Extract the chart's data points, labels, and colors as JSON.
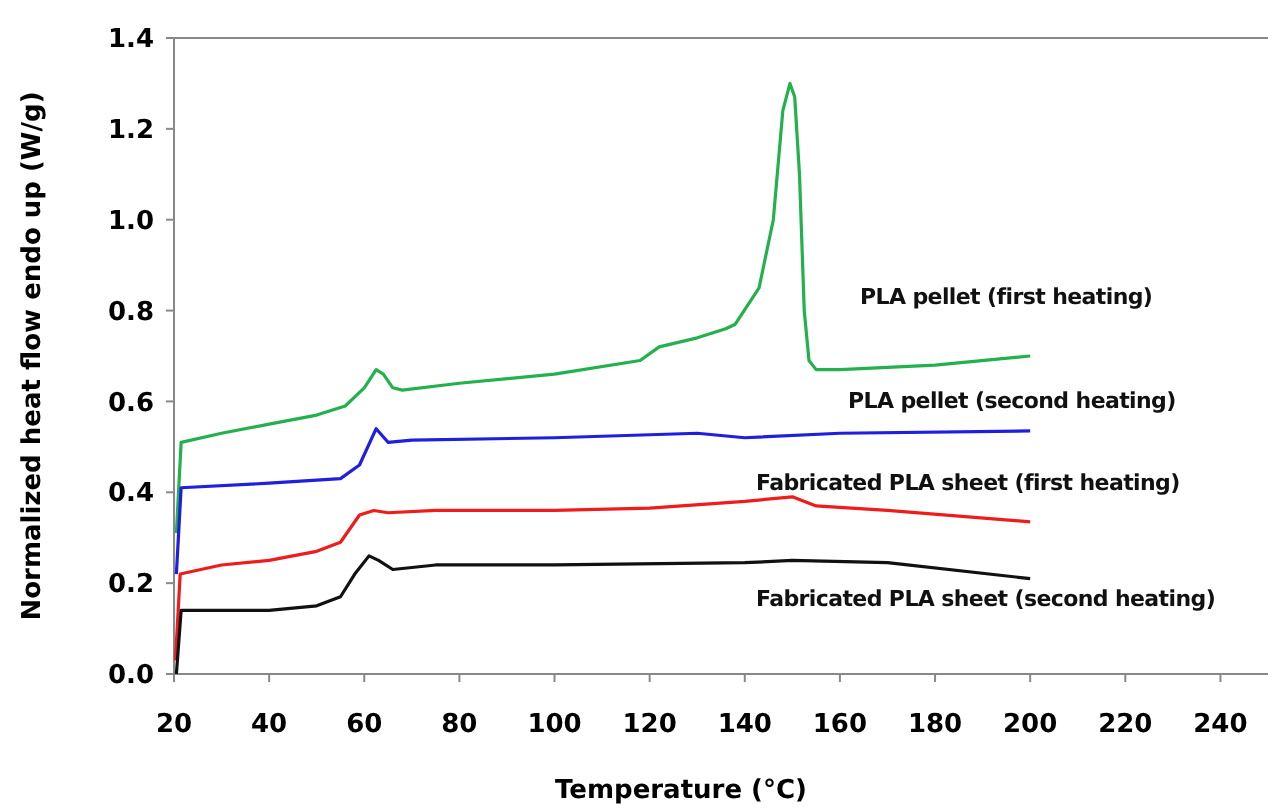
{
  "chart_data": {
    "type": "line",
    "xlabel": "Temperature (°C)",
    "ylabel": "Normalized heat flow endo up (W/g)",
    "xlim": [
      20,
      250
    ],
    "ylim": [
      0,
      1.4
    ],
    "xticks": [
      20,
      40,
      60,
      80,
      100,
      120,
      140,
      160,
      180,
      200,
      220,
      240
    ],
    "yticks": [
      {
        "value": 0,
        "label": "0.0"
      },
      {
        "value": 0.2,
        "label": "0.2"
      },
      {
        "value": 0.4,
        "label": "0.4"
      },
      {
        "value": 0.6,
        "label": "0.6"
      },
      {
        "value": 0.8,
        "label": "0.8"
      },
      {
        "value": 1.0,
        "label": "1.0"
      },
      {
        "value": 1.2,
        "label": "1.2"
      },
      {
        "value": 1.4,
        "label": "1.4"
      }
    ],
    "grid": false,
    "line_style": "solid",
    "series": [
      {
        "name": "PLA pellet (first heating)",
        "color": "#22b14c",
        "x": [
          20.5,
          21.5,
          30,
          40,
          50,
          56,
          60,
          62.5,
          64,
          66,
          68,
          80,
          100,
          118,
          122,
          130,
          136,
          138,
          143,
          146,
          148,
          149.5,
          150.5,
          151.5,
          152.5,
          153.5,
          155,
          160,
          180,
          200
        ],
        "values": [
          0.31,
          0.51,
          0.53,
          0.55,
          0.57,
          0.59,
          0.63,
          0.67,
          0.66,
          0.63,
          0.625,
          0.64,
          0.66,
          0.69,
          0.72,
          0.74,
          0.76,
          0.77,
          0.85,
          1.0,
          1.24,
          1.3,
          1.27,
          1.1,
          0.8,
          0.69,
          0.67,
          0.67,
          0.68,
          0.7
        ]
      },
      {
        "name": "PLA pellet (second heating)",
        "color": "#1f1fe0",
        "x": [
          20.5,
          21.5,
          40,
          55,
          59,
          62.5,
          65,
          70,
          100,
          130,
          140,
          160,
          200
        ],
        "values": [
          0.22,
          0.41,
          0.42,
          0.43,
          0.46,
          0.54,
          0.51,
          0.515,
          0.52,
          0.53,
          0.52,
          0.53,
          0.535
        ]
      },
      {
        "name": "Fabricated PLA sheet (first heating)",
        "color": "#ee1c1c",
        "x": [
          20.3,
          21.3,
          30,
          40,
          50,
          55,
          59,
          62,
          65,
          75,
          100,
          120,
          140,
          150,
          155,
          170,
          200
        ],
        "values": [
          0.03,
          0.22,
          0.24,
          0.25,
          0.27,
          0.29,
          0.35,
          0.36,
          0.355,
          0.36,
          0.36,
          0.365,
          0.38,
          0.39,
          0.37,
          0.36,
          0.335
        ]
      },
      {
        "name": "Fabricated PLA sheet (second heating)",
        "color": "#111111",
        "x": [
          20.5,
          21.5,
          40,
          50,
          55,
          58,
          61,
          63,
          66,
          75,
          100,
          140,
          150,
          170,
          200
        ],
        "values": [
          0.0,
          0.14,
          0.14,
          0.15,
          0.17,
          0.22,
          0.26,
          0.25,
          0.23,
          0.24,
          0.24,
          0.245,
          0.25,
          0.245,
          0.21
        ]
      }
    ]
  }
}
